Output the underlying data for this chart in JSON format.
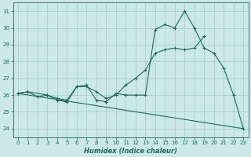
{
  "xlabel": "Humidex (Indice chaleur)",
  "bg_color": "#cce8e8",
  "grid_color": "#aad0d0",
  "line_color": "#1a6b5a",
  "hours": [
    0,
    1,
    2,
    3,
    4,
    5,
    6,
    7,
    8,
    9,
    10,
    11,
    12,
    13,
    14,
    15,
    16,
    17,
    18,
    19,
    20,
    21,
    22,
    23
  ],
  "line1": [
    26.1,
    26.2,
    25.9,
    26.0,
    25.7,
    25.6,
    26.5,
    26.6,
    25.7,
    25.6,
    26.1,
    26.0,
    26.0,
    26.0,
    29.9,
    30.2,
    30.0,
    31.0,
    30.0,
    28.8,
    28.5,
    27.6,
    26.0,
    24.0
  ],
  "line2_x": [
    0,
    1,
    3,
    4,
    5,
    6,
    7,
    8,
    9,
    10,
    11,
    12,
    13,
    14,
    15,
    16,
    17,
    18,
    19
  ],
  "line2_y": [
    26.1,
    26.2,
    26.0,
    25.8,
    25.7,
    26.5,
    26.5,
    26.2,
    25.8,
    26.0,
    26.6,
    27.0,
    27.5,
    28.5,
    28.7,
    28.8,
    28.7,
    28.8,
    29.5
  ],
  "line3_x": [
    0,
    23
  ],
  "line3_y": [
    26.1,
    24.0
  ],
  "ylim": [
    23.5,
    31.5
  ],
  "xlim": [
    -0.5,
    23.5
  ],
  "yticks": [
    24,
    25,
    26,
    27,
    28,
    29,
    30,
    31
  ],
  "xticks": [
    0,
    1,
    2,
    3,
    4,
    5,
    6,
    7,
    8,
    9,
    10,
    11,
    12,
    13,
    14,
    15,
    16,
    17,
    18,
    19,
    20,
    21,
    22,
    23
  ]
}
